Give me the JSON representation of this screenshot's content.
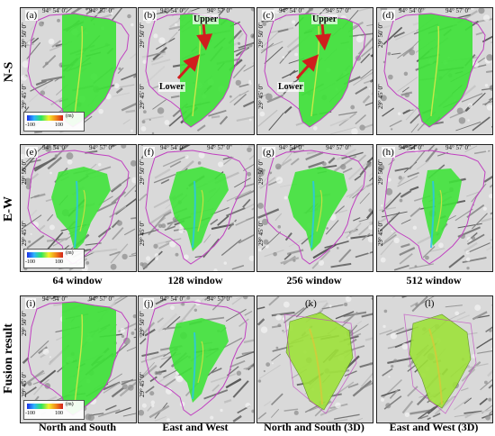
{
  "rows": {
    "ns_label": "N-S",
    "ew_label": "E-W",
    "fusion_label": "Fusion result"
  },
  "ticks": {
    "lon_left": "94° 54' 0\"",
    "lon_right": "94° 57' 0\"",
    "lat_top": "29° 50' 0\"",
    "lat_bottom": "29° 45' 0\""
  },
  "legend": {
    "min": "-100",
    "max": "100",
    "unit": "(m)"
  },
  "annotations": {
    "upper": "Upper",
    "lower": "Lower"
  },
  "panels": {
    "a": "(a)",
    "b": "(b)",
    "c": "(c)",
    "d": "(d)",
    "e": "(e)",
    "f": "(f)",
    "g": "(g)",
    "h": "(h)",
    "i": "(i)",
    "j": "(j)",
    "k": "(k)",
    "l": "(l)"
  },
  "column_captions": {
    "w64": "64 window",
    "w128": "128 window",
    "w256": "256 window",
    "w512": "512 window",
    "ns": "North and South",
    "ew": "East and West",
    "ns3d": "North and South (3D)",
    "ew3d": "East and West (3D)"
  },
  "colors": {
    "displacement_green": "#3fe23a",
    "boundary": "#c040c0",
    "arrow": "#d01e1e"
  }
}
